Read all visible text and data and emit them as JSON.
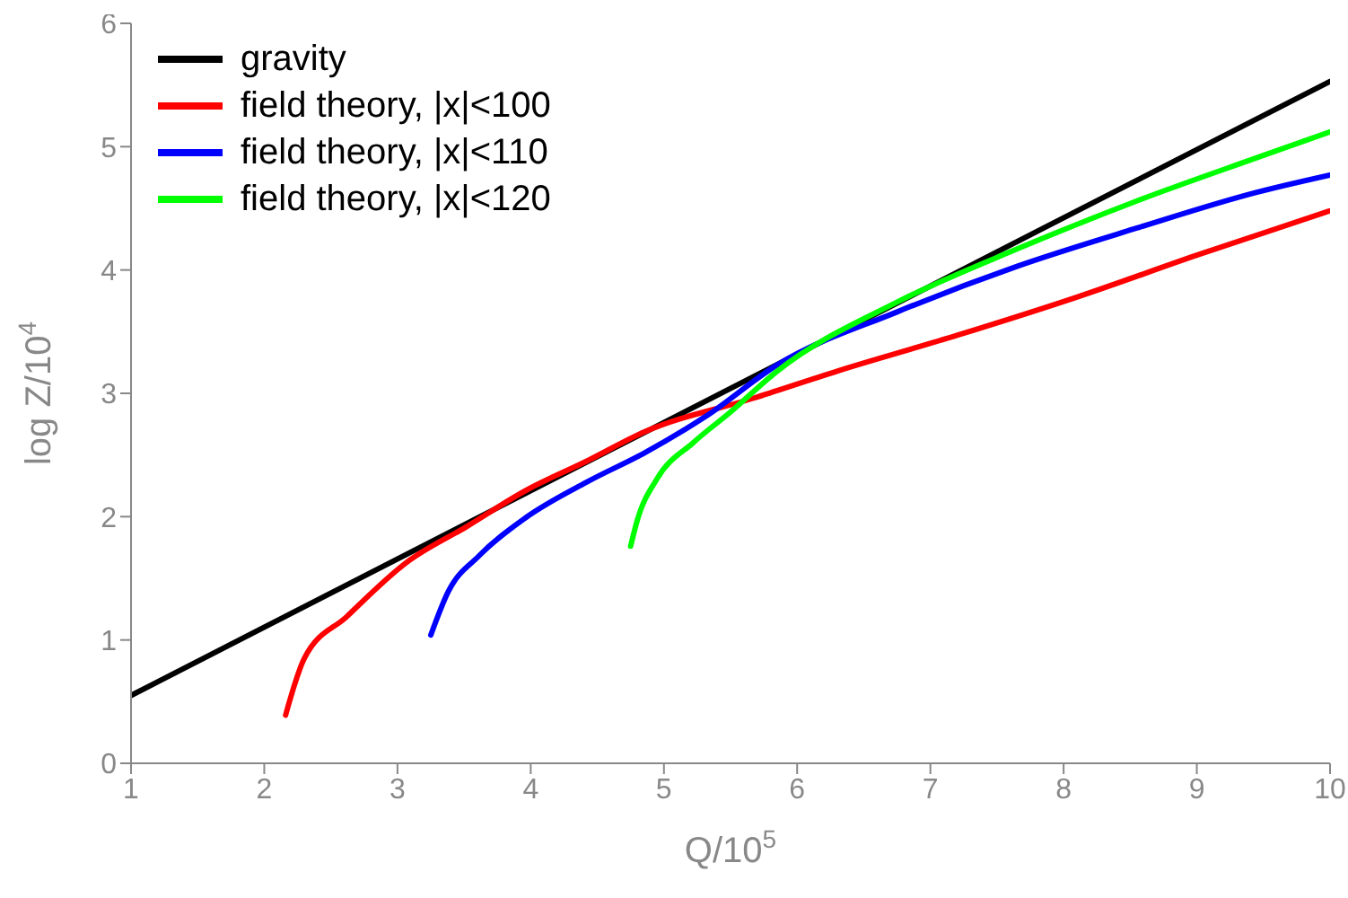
{
  "chart_data": {
    "type": "line",
    "xlabel": "Q/10$^{5}$",
    "ylabel": "log Z/10$^{4}$",
    "xlim": [
      1,
      10
    ],
    "xticks": [
      1,
      2,
      3,
      4,
      5,
      6,
      7,
      8,
      9,
      10
    ],
    "ylim": [
      0,
      6
    ],
    "yticks": [
      0,
      1,
      2,
      3,
      4,
      5,
      6
    ],
    "grid": false,
    "legend": "top left",
    "marker": "none",
    "line_style": "solid",
    "series": [
      {
        "name": "gravity",
        "color": "#000000",
        "x": [
          1,
          10
        ],
        "values": [
          0.55,
          5.53
        ]
      },
      {
        "name": "field theory, |x|<100",
        "color": "#ff0000",
        "x": [
          2.16,
          2.3,
          2.62,
          3.07,
          3.52,
          3.96,
          4.42,
          4.86,
          5.67,
          6.3,
          7.2,
          8.1,
          9.0,
          10
        ],
        "values": [
          0.39,
          0.85,
          1.19,
          1.63,
          1.92,
          2.21,
          2.45,
          2.69,
          2.96,
          3.18,
          3.47,
          3.78,
          4.12,
          4.48
        ]
      },
      {
        "name": "field theory, |x|<110",
        "color": "#0000ff",
        "x": [
          3.25,
          3.38,
          3.61,
          3.96,
          4.42,
          4.86,
          5.31,
          5.85,
          6.75,
          7.65,
          8.55,
          9.45,
          10
        ],
        "values": [
          1.04,
          1.39,
          1.68,
          1.99,
          2.28,
          2.52,
          2.81,
          3.23,
          3.66,
          4.03,
          4.34,
          4.63,
          4.77
        ]
      },
      {
        "name": "field theory, |x|<120",
        "color": "#00ff00",
        "x": [
          4.75,
          4.8,
          4.95,
          5.22,
          5.49,
          5.85,
          6.75,
          7.65,
          8.55,
          9.45,
          10
        ],
        "values": [
          1.76,
          1.97,
          2.31,
          2.6,
          2.84,
          3.18,
          3.74,
          4.17,
          4.56,
          4.91,
          5.12
        ]
      }
    ]
  }
}
